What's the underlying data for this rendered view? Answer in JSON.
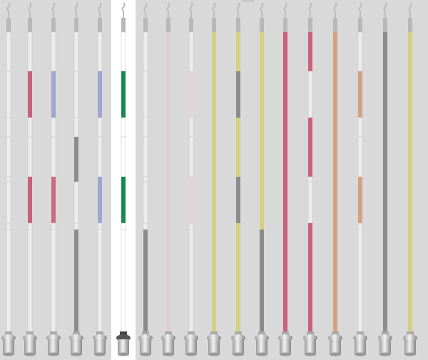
{
  "poles": [
    {
      "bands": [
        null,
        null,
        null,
        null,
        null,
        null,
        null,
        null
      ]
    },
    {
      "bands": [
        null,
        "#c8607f",
        null,
        null,
        "#c8607f",
        "#c8607f",
        null,
        null
      ]
    },
    {
      "bands": [
        null,
        "#9ea6cf",
        null,
        null,
        "#cc6a86",
        "#cc6a86",
        null,
        null
      ]
    },
    {
      "bands": [
        null,
        null,
        null,
        "#8c8c8c",
        "#8c8c8c",
        null,
        null,
        "#8c8c8c"
      ]
    },
    {
      "bands": [
        null,
        "#9ea6cf",
        null,
        null,
        "#9ea6cf",
        "#9ea6cf",
        null,
        null
      ]
    },
    {
      "bands": [
        null,
        "#17894f",
        null,
        null,
        "#17894f",
        "#17894f",
        null,
        null
      ]
    },
    {
      "bands": [
        null,
        null,
        null,
        null,
        null,
        null,
        null,
        "#8c8c8c"
      ]
    },
    {
      "bands": [
        "#ddd0d3",
        "#ddd0d3",
        "#ddd0d3",
        "#ddd0d3",
        "#ddd0d3",
        "#ddd0d3",
        "#ddd0d3",
        "#ddd0d3"
      ]
    },
    {
      "bands": [
        null,
        "#e3d3d7",
        null,
        null,
        "#e3d3d7",
        "#e3d3d7",
        null,
        null
      ]
    },
    {
      "bands": [
        "#d8d081",
        "#d8d081",
        "#d8d081",
        "#d8d081",
        "#d8d081",
        "#d8d081",
        "#d8d081",
        "#d8d081"
      ]
    },
    {
      "bands": [
        "#d8d081",
        "#8c8c8c",
        "#d8d081",
        "#d8d081",
        "#8c8c8c",
        "#8c8c8c",
        "#d8d081",
        "#d8d081"
      ]
    },
    {
      "bands": [
        "#d8d081",
        "#d8d081",
        "#d8d081",
        "#d8d081",
        "#d8d081",
        "#d8d081",
        "#d8d081",
        "#8c8c8c"
      ]
    },
    {
      "bands": [
        "#c8607f",
        "#c8607f",
        "#c8607f",
        "#c8607f",
        "#c8607f",
        "#c8607f",
        "#c8607f",
        "#c8607f"
      ]
    },
    {
      "bands": [
        "#c8607f",
        null,
        "#c8607f",
        "#c8607f",
        null,
        null,
        "#c8607f",
        "#c8607f"
      ]
    },
    {
      "bands": [
        "#d5a182",
        "#d5a182",
        "#d5a182",
        "#d5a182",
        "#d5a182",
        "#d5a182",
        "#d5a182",
        "#d5a182"
      ]
    },
    {
      "bands": [
        null,
        "#d5a182",
        null,
        null,
        "#d5a182",
        "#d5a182",
        null,
        null
      ]
    },
    {
      "bands": [
        "#8c8c8c",
        "#8c8c8c",
        "#8c8c8c",
        "#8c8c8c",
        "#8c8c8c",
        "#8c8c8c",
        "#8c8c8c",
        "#8c8c8c"
      ]
    },
    {
      "bands": [
        "#d8d081",
        "#d8d081",
        "#d8d081",
        "#d8d081",
        "#d8d081",
        "#d8d081",
        "#d8d081",
        "#d8d081"
      ]
    }
  ],
  "selected": 5
}
